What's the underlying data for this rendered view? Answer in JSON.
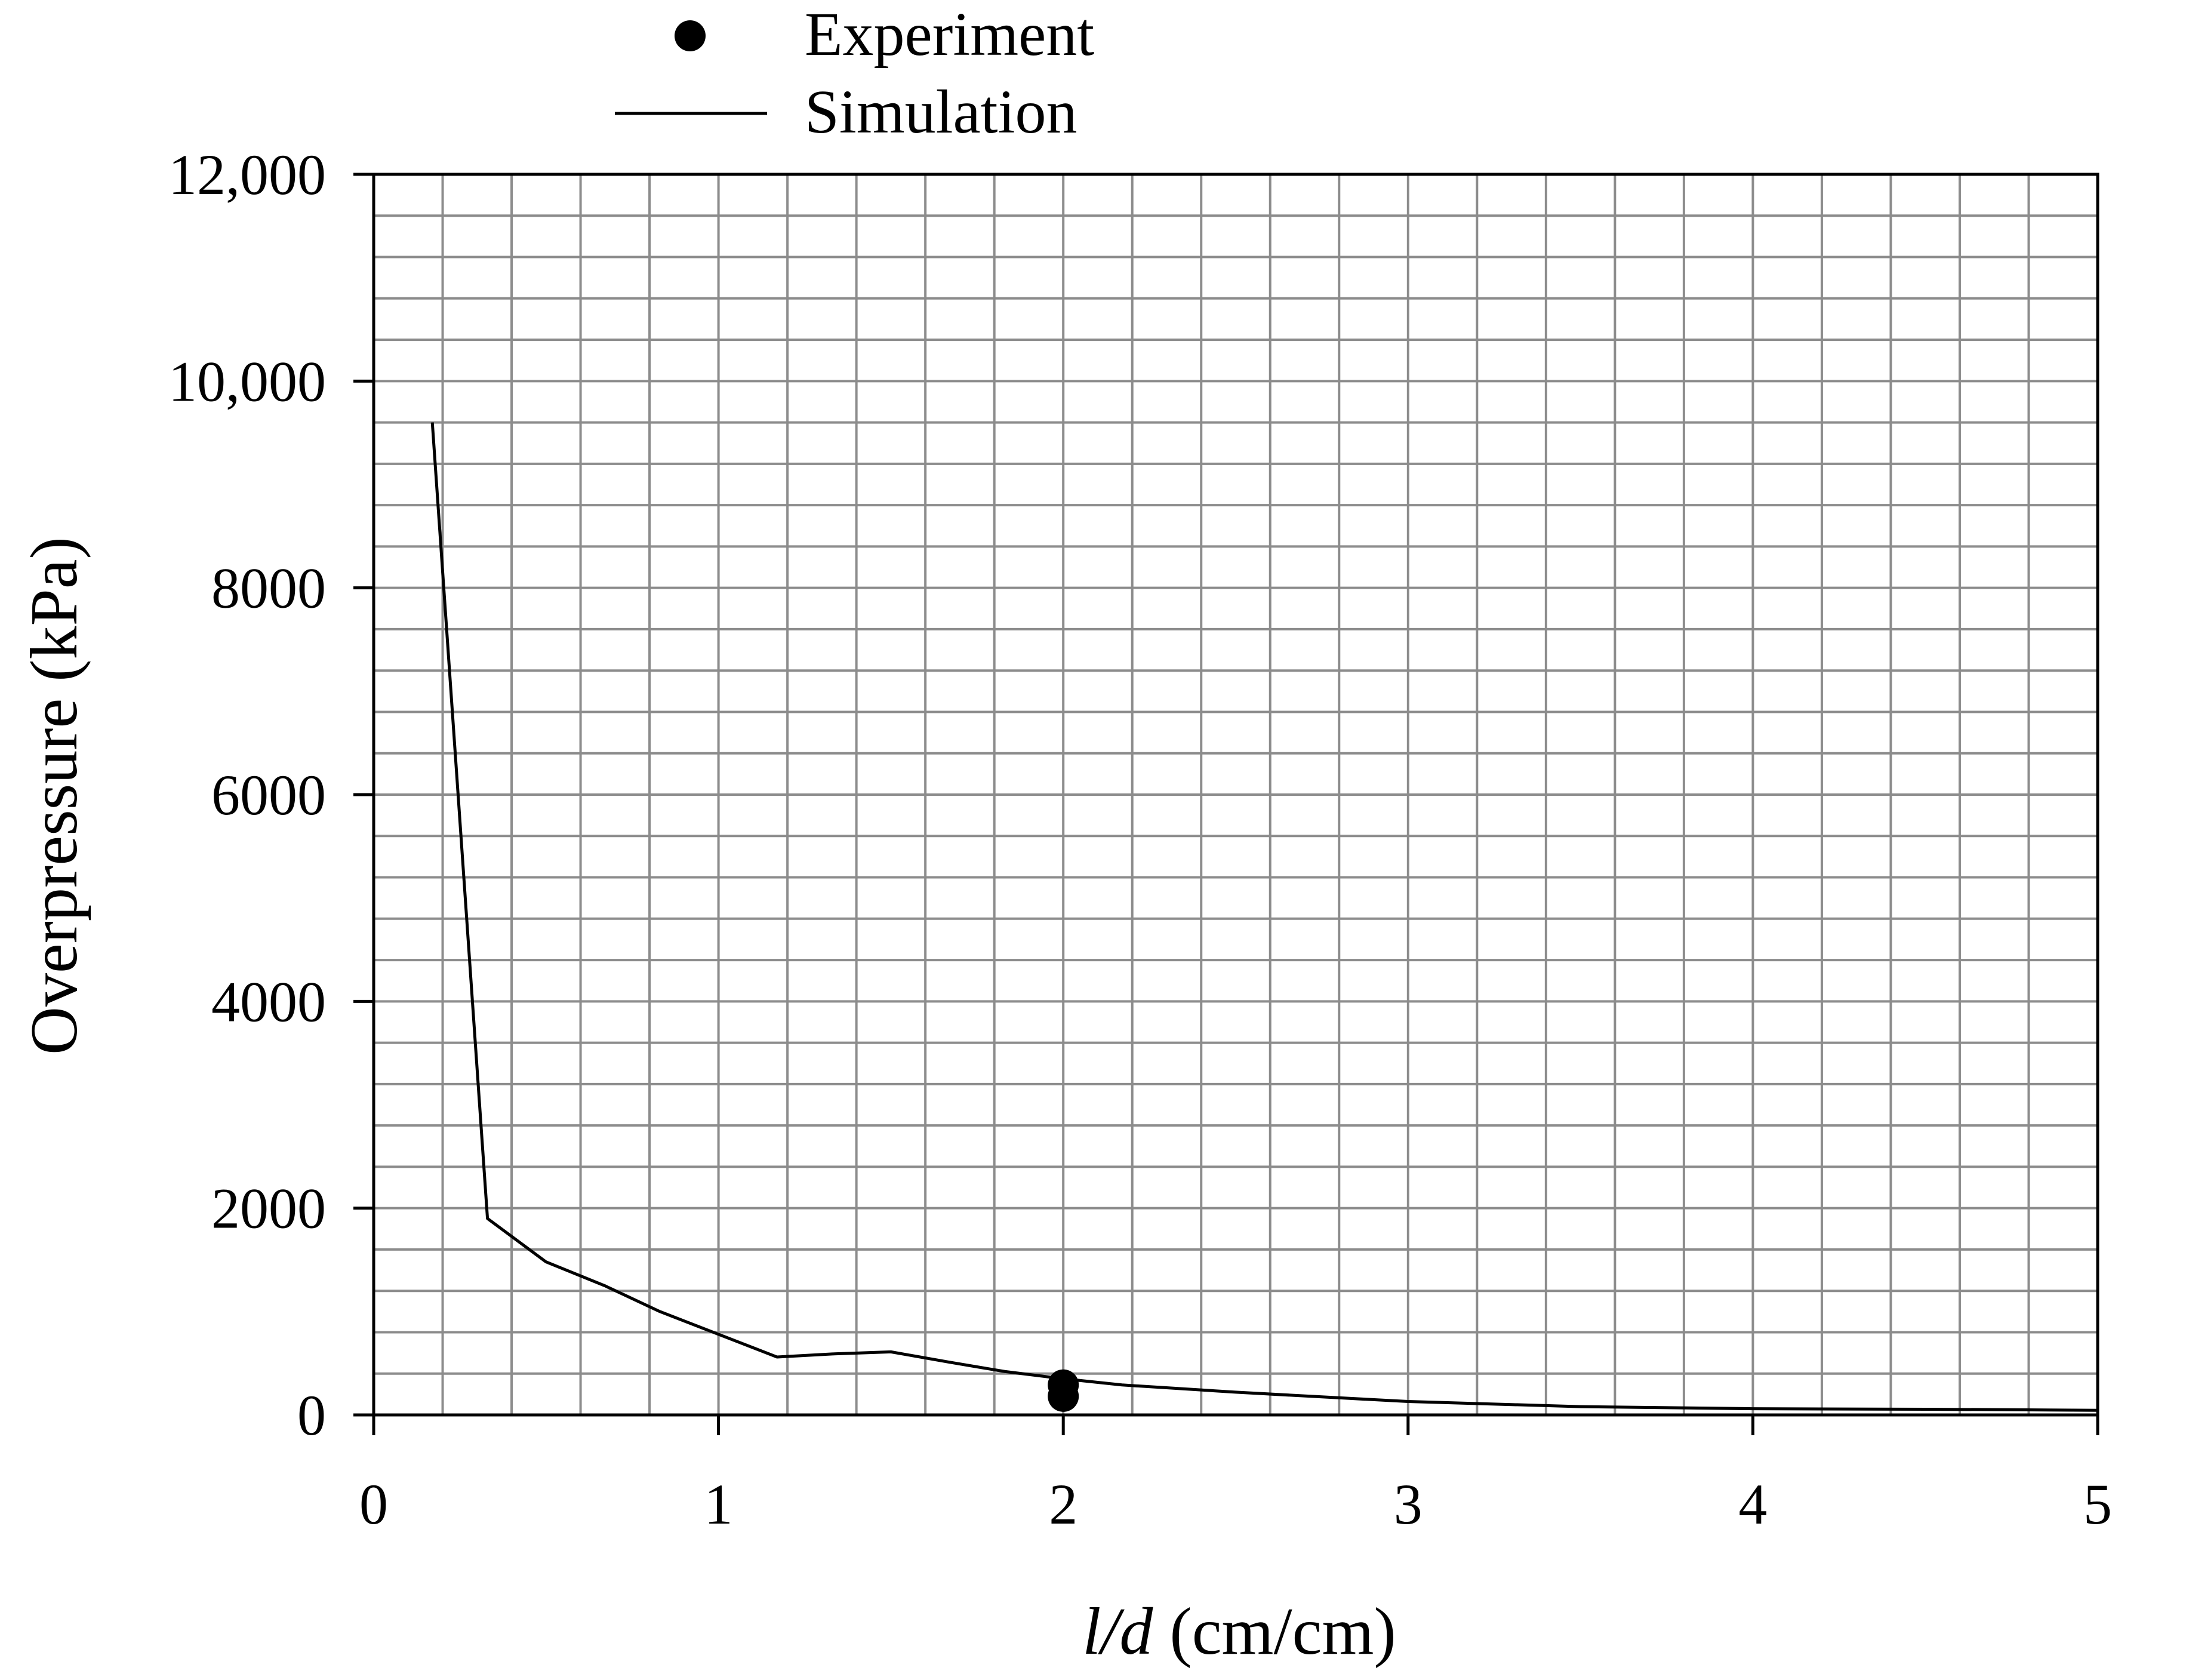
{
  "chart_data": {
    "type": "line",
    "title": "",
    "xlabel": {
      "italic": "l/d",
      "units": " (cm/cm)"
    },
    "ylabel": "Overpressure (kPa)",
    "xlim": [
      0,
      5
    ],
    "ylim": [
      0,
      12000
    ],
    "x_ticks": [
      0,
      1,
      2,
      3,
      4,
      5
    ],
    "x_tick_labels": [
      "0",
      "1",
      "2",
      "3",
      "4",
      "5"
    ],
    "y_ticks": [
      0,
      2000,
      4000,
      6000,
      8000,
      10000,
      12000
    ],
    "y_tick_labels": [
      "0",
      "2000",
      "4000",
      "6000",
      "8000",
      "10,000",
      "12,000"
    ],
    "x_minor_step": 0.2,
    "y_minor_step": 400,
    "grid": true,
    "legend_position": "top-center",
    "legend": [
      {
        "name": "Experiment",
        "marker": "circle"
      },
      {
        "name": "Simulation",
        "marker": "line"
      }
    ],
    "series": [
      {
        "name": "Simulation",
        "style": "line",
        "color": "#000000",
        "x": [
          0.17,
          0.33,
          0.5,
          0.67,
          0.83,
          1.0,
          1.17,
          1.33,
          1.5,
          1.67,
          1.83,
          2.0,
          2.17,
          2.5,
          2.83,
          3.0,
          3.5,
          4.0,
          4.5,
          5.0
        ],
        "y": [
          9600,
          1900,
          1480,
          1250,
          1000,
          780,
          560,
          590,
          610,
          510,
          420,
          350,
          290,
          220,
          160,
          130,
          80,
          60,
          55,
          45
        ]
      },
      {
        "name": "Experiment",
        "style": "scatter",
        "color": "#000000",
        "x": [
          2.0,
          2.0
        ],
        "y": [
          290,
          180
        ]
      }
    ]
  }
}
